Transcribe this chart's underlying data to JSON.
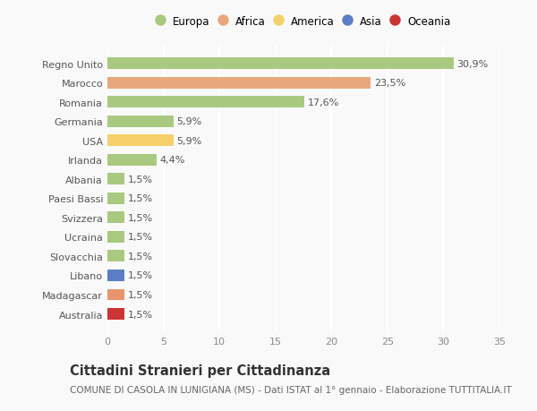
{
  "categories": [
    "Australia",
    "Madagascar",
    "Libano",
    "Slovacchia",
    "Ucraina",
    "Svizzera",
    "Paesi Bassi",
    "Albania",
    "Irlanda",
    "USA",
    "Germania",
    "Romania",
    "Marocco",
    "Regno Unito"
  ],
  "values": [
    1.5,
    1.5,
    1.5,
    1.5,
    1.5,
    1.5,
    1.5,
    1.5,
    4.4,
    5.9,
    5.9,
    17.6,
    23.5,
    30.9
  ],
  "percentages": [
    "1,5%",
    "1,5%",
    "1,5%",
    "1,5%",
    "1,5%",
    "1,5%",
    "1,5%",
    "1,5%",
    "4,4%",
    "5,9%",
    "5,9%",
    "17,6%",
    "23,5%",
    "30,9%"
  ],
  "colors": [
    "#cc3333",
    "#e8956d",
    "#5b7ec5",
    "#a8c97f",
    "#a8c97f",
    "#a8c97f",
    "#a8c97f",
    "#a8c97f",
    "#a8c97f",
    "#f5d06a",
    "#a8c97f",
    "#a8c97f",
    "#e8a87c",
    "#a8c97f"
  ],
  "legend_labels": [
    "Europa",
    "Africa",
    "America",
    "Asia",
    "Oceania"
  ],
  "legend_colors": [
    "#a8c97f",
    "#e8a87c",
    "#f5d06a",
    "#5b7ec5",
    "#cc3333"
  ],
  "title": "Cittadini Stranieri per Cittadinanza",
  "subtitle": "COMUNE DI CASOLA IN LUNIGIANA (MS) - Dati ISTAT al 1° gennaio - Elaborazione TUTTITALIA.IT",
  "xlim": [
    0,
    35
  ],
  "xticks": [
    0,
    5,
    10,
    15,
    20,
    25,
    30,
    35
  ],
  "background_color": "#f9f9f9",
  "grid_color": "#ffffff",
  "bar_height": 0.6,
  "title_fontsize": 10.5,
  "subtitle_fontsize": 7.5,
  "label_fontsize": 8,
  "tick_fontsize": 8,
  "legend_fontsize": 8.5
}
